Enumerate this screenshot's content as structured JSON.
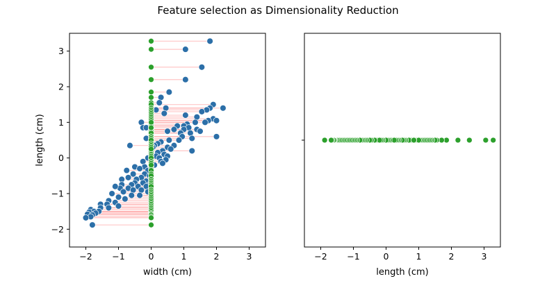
{
  "figure": {
    "title": "Feature selection as Dimensionality Reduction"
  },
  "colors": {
    "original": "#2c6fa8",
    "projected": "#2ca02c",
    "projection_line": "#ff8080"
  },
  "chart_data": [
    {
      "type": "scatter",
      "xlabel": "width (cm)",
      "ylabel": "length (cm)",
      "xlim": [
        -2.5,
        3.5
      ],
      "ylim": [
        -2.5,
        3.5
      ],
      "xticks": [
        -2,
        -1,
        0,
        1,
        2,
        3
      ],
      "yticks": [
        -2,
        -1,
        0,
        1,
        2,
        3
      ],
      "grid": false,
      "series": [
        {
          "role": "original",
          "color": "#2c6fa8",
          "points": [
            [
              1.8,
              3.28
            ],
            [
              1.05,
              3.05
            ],
            [
              1.55,
              2.55
            ],
            [
              1.05,
              2.2
            ],
            [
              0.55,
              1.85
            ],
            [
              0.3,
              1.7
            ],
            [
              0.25,
              1.55
            ],
            [
              1.9,
              1.5
            ],
            [
              1.8,
              1.4
            ],
            [
              2.2,
              1.4
            ],
            [
              0.45,
              1.4
            ],
            [
              0.15,
              1.35
            ],
            [
              1.7,
              1.35
            ],
            [
              1.55,
              1.3
            ],
            [
              0.4,
              1.25
            ],
            [
              1.05,
              1.2
            ],
            [
              1.4,
              1.15
            ],
            [
              1.9,
              1.1
            ],
            [
              1.75,
              1.05
            ],
            [
              1.35,
              1.0
            ],
            [
              2.0,
              1.05
            ],
            [
              1.65,
              1.0
            ],
            [
              1.1,
              0.95
            ],
            [
              0.8,
              0.9
            ],
            [
              1.0,
              0.9
            ],
            [
              -0.3,
              1.0
            ],
            [
              -0.25,
              0.85
            ],
            [
              1.15,
              0.85
            ],
            [
              1.4,
              0.8
            ],
            [
              1.5,
              0.75
            ],
            [
              1.0,
              0.8
            ],
            [
              0.7,
              0.8
            ],
            [
              0.9,
              0.7
            ],
            [
              0.5,
              0.75
            ],
            [
              1.2,
              0.7
            ],
            [
              -0.15,
              0.85
            ],
            [
              0.95,
              0.6
            ],
            [
              2.0,
              0.6
            ],
            [
              1.25,
              0.55
            ],
            [
              -0.15,
              0.55
            ],
            [
              0.3,
              0.45
            ],
            [
              0.55,
              0.5
            ],
            [
              0.85,
              0.5
            ],
            [
              0.2,
              0.4
            ],
            [
              -0.65,
              0.35
            ],
            [
              0.1,
              0.35
            ],
            [
              0.7,
              0.35
            ],
            [
              0.5,
              0.3
            ],
            [
              0.05,
              0.3
            ],
            [
              1.25,
              0.2
            ],
            [
              0.35,
              0.2
            ],
            [
              0.2,
              0.15
            ],
            [
              0.6,
              0.25
            ],
            [
              0.4,
              0.1
            ],
            [
              0.15,
              0.05
            ],
            [
              0.5,
              0.05
            ],
            [
              -0.1,
              0.0
            ],
            [
              0.45,
              -0.05
            ],
            [
              0.25,
              0.0
            ],
            [
              0.3,
              -0.1
            ],
            [
              -0.25,
              -0.1
            ],
            [
              0.35,
              -0.15
            ],
            [
              0.0,
              -0.15
            ],
            [
              -0.5,
              -0.25
            ],
            [
              -0.2,
              -0.25
            ],
            [
              -0.35,
              -0.3
            ],
            [
              0.1,
              -0.2
            ],
            [
              -0.1,
              -0.35
            ],
            [
              -0.75,
              -0.35
            ],
            [
              -0.55,
              -0.45
            ],
            [
              -0.2,
              -0.45
            ],
            [
              -0.3,
              -0.55
            ],
            [
              -0.7,
              -0.55
            ],
            [
              -0.05,
              -0.5
            ],
            [
              -0.45,
              -0.6
            ],
            [
              -0.9,
              -0.6
            ],
            [
              -0.15,
              -0.65
            ],
            [
              -0.25,
              -0.7
            ],
            [
              -0.5,
              -0.7
            ],
            [
              -0.05,
              -0.75
            ],
            [
              -0.6,
              -0.75
            ],
            [
              -0.9,
              -0.75
            ],
            [
              -0.4,
              -0.8
            ],
            [
              -0.15,
              -0.8
            ],
            [
              -0.95,
              -0.85
            ],
            [
              -0.7,
              -0.85
            ],
            [
              -1.1,
              -0.8
            ],
            [
              -0.3,
              -0.9
            ],
            [
              -0.55,
              -0.9
            ],
            [
              -0.85,
              -0.95
            ],
            [
              -0.1,
              -0.95
            ],
            [
              -1.2,
              -1.0
            ],
            [
              -0.6,
              -1.05
            ],
            [
              -0.35,
              -1.05
            ],
            [
              -1.0,
              -1.1
            ],
            [
              -0.8,
              -1.15
            ],
            [
              -1.3,
              -1.2
            ],
            [
              -1.1,
              -1.25
            ],
            [
              -1.55,
              -1.3
            ],
            [
              -1.35,
              -1.3
            ],
            [
              -1.0,
              -1.35
            ],
            [
              -1.3,
              -1.4
            ],
            [
              -1.55,
              -1.4
            ],
            [
              -1.85,
              -1.45
            ],
            [
              -1.75,
              -1.5
            ],
            [
              -1.9,
              -1.52
            ],
            [
              -1.6,
              -1.5
            ],
            [
              -1.7,
              -1.55
            ],
            [
              -1.95,
              -1.58
            ],
            [
              -1.8,
              -1.6
            ],
            [
              -1.85,
              -1.65
            ],
            [
              -2.0,
              -1.68
            ],
            [
              -1.8,
              -1.88
            ]
          ]
        },
        {
          "role": "projected",
          "color": "#2ca02c",
          "note_x_value": 0
        }
      ]
    },
    {
      "type": "scatter",
      "xlabel": "length (cm)",
      "ylabel": "",
      "xlim": [
        -2.5,
        3.5
      ],
      "ylim": [
        -1,
        1
      ],
      "xticks": [
        -2,
        -1,
        0,
        1,
        2,
        3
      ],
      "yticks": [
        0
      ],
      "grid": false,
      "series": [
        {
          "role": "projected",
          "color": "#2ca02c",
          "y_value": 0
        }
      ]
    }
  ]
}
